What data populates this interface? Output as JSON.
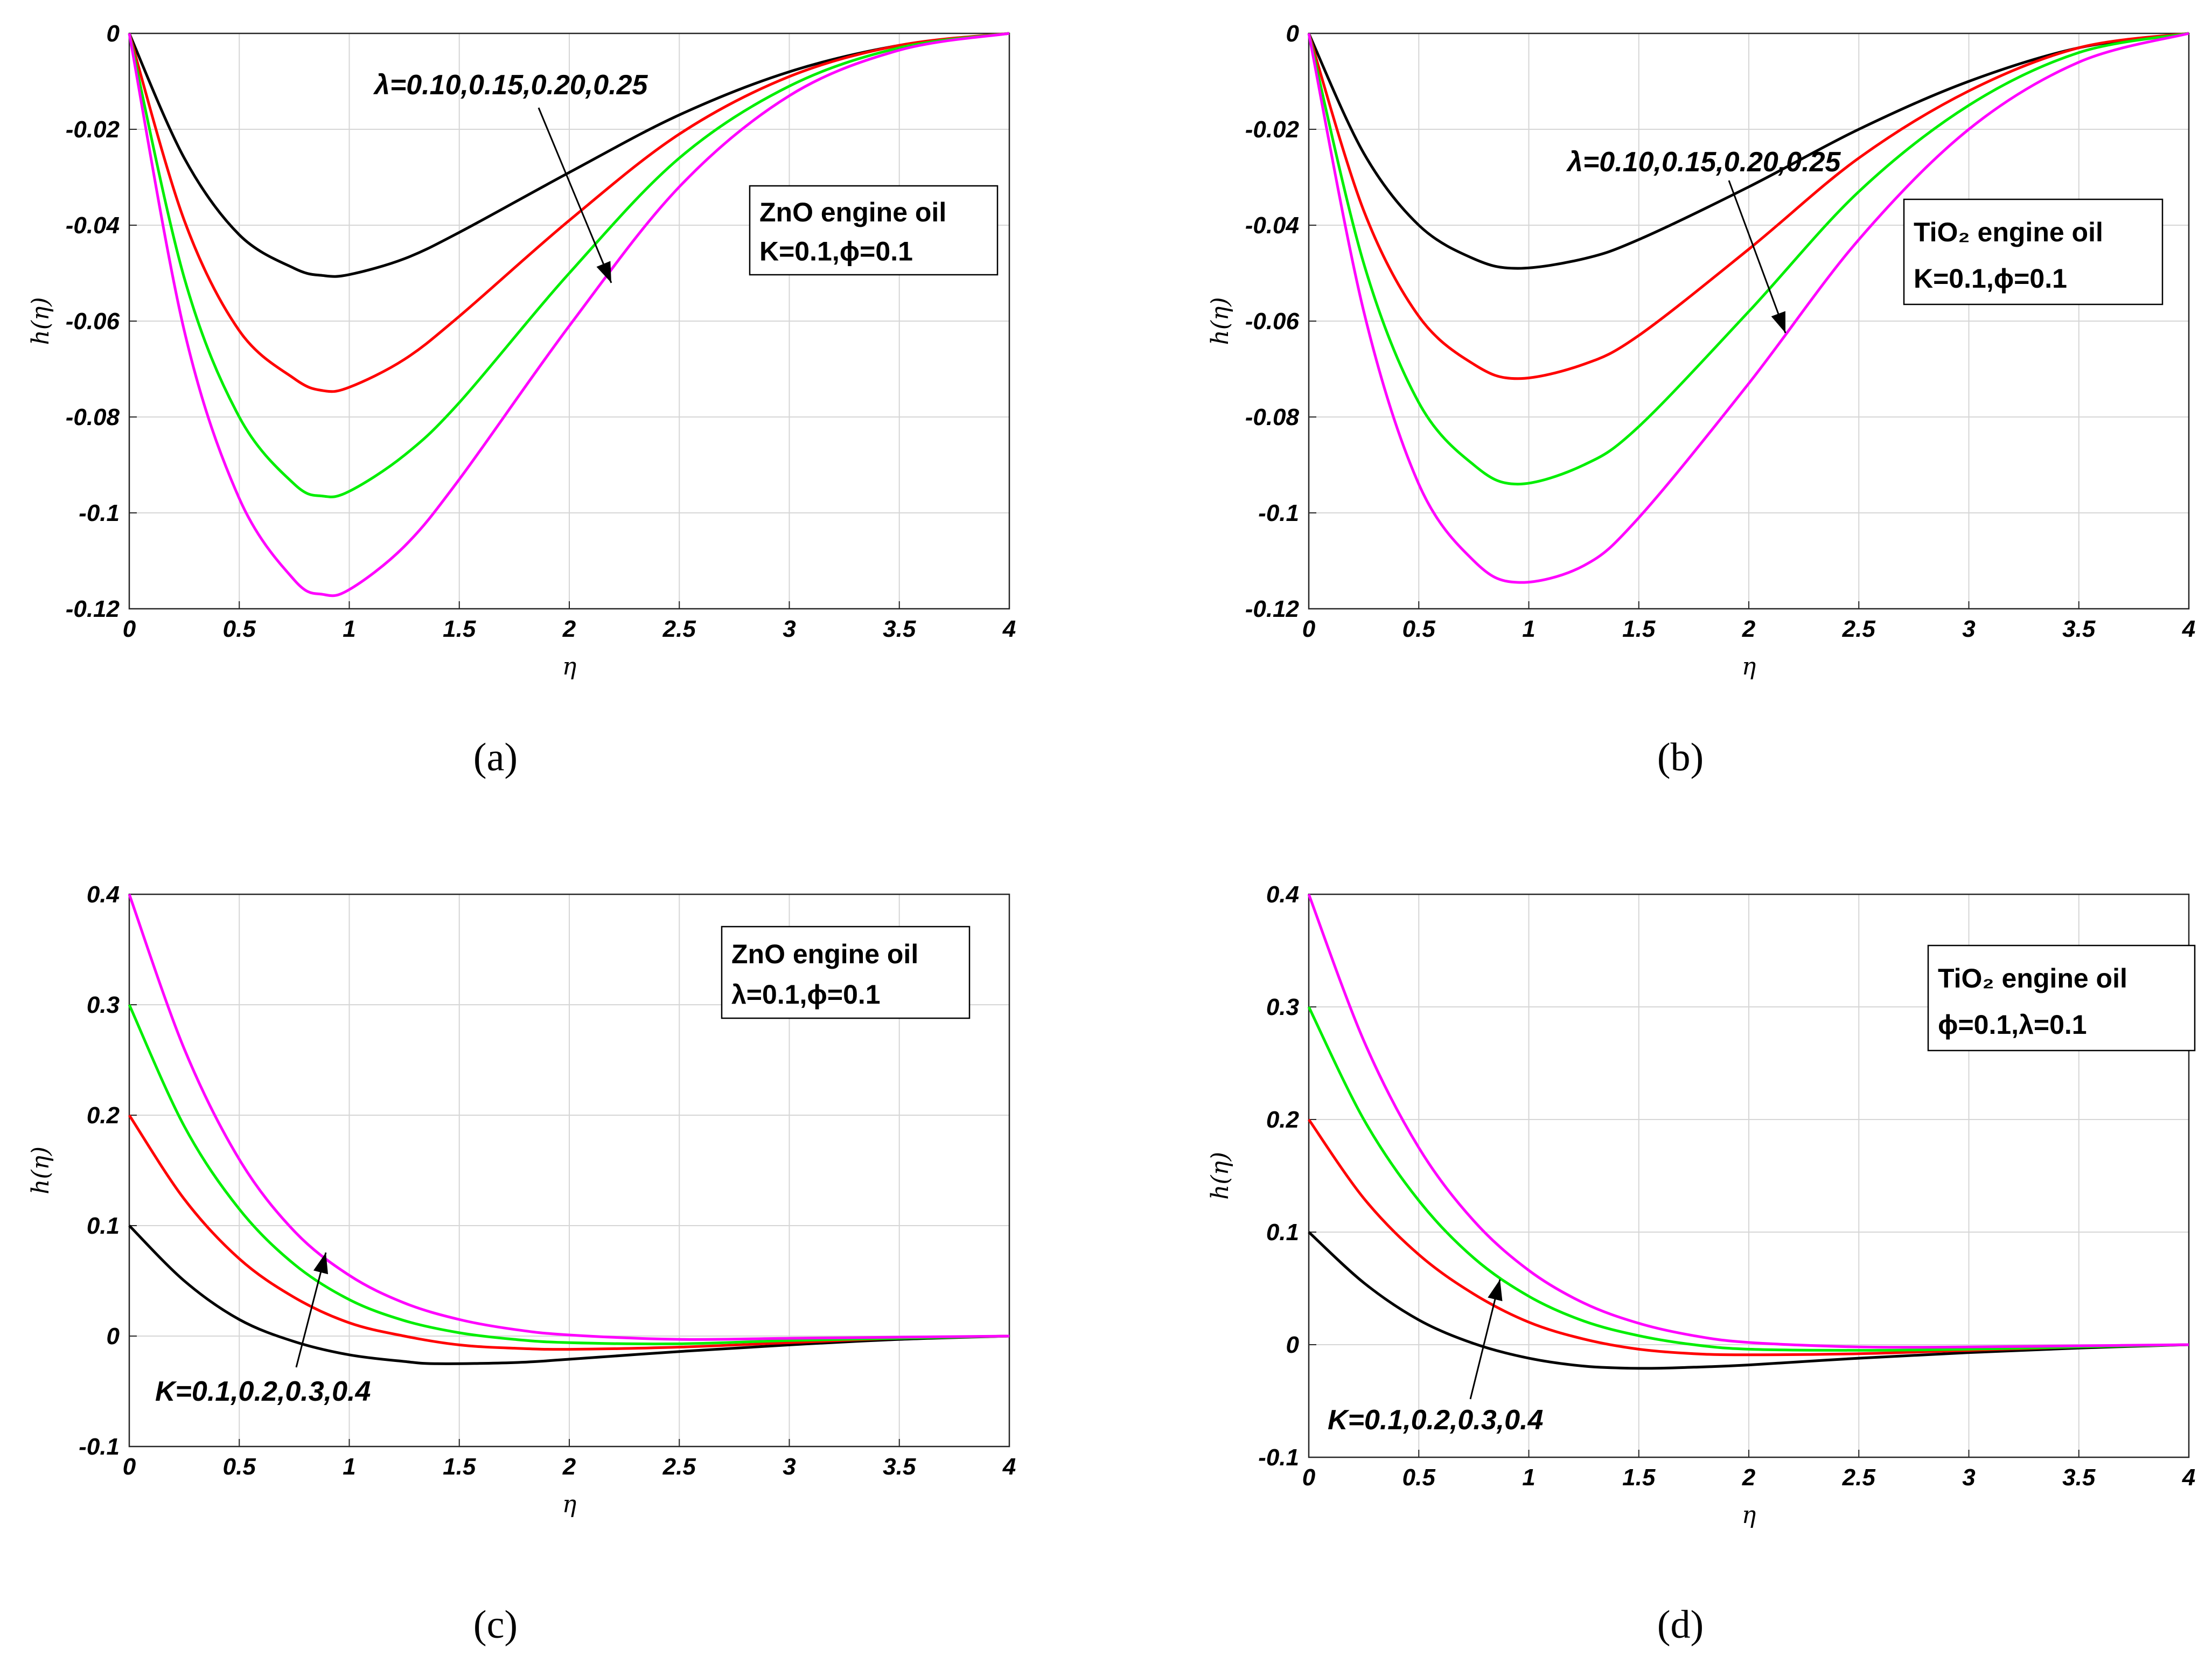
{
  "chart_data": [
    {
      "type": "line",
      "caption": "(a)",
      "xlabel": "η",
      "ylabel": "h(η)",
      "xlim": [
        0,
        4
      ],
      "ylim": [
        -0.12,
        0
      ],
      "xticks": [
        "0",
        "0.5",
        "1",
        "1.5",
        "2",
        "2.5",
        "3",
        "3.5",
        "4"
      ],
      "yticks": [
        "0",
        "-0.02",
        "-0.04",
        "-0.06",
        "-0.08",
        "-0.1",
        "-0.12"
      ],
      "grid": true,
      "legend": {
        "line1": "ZnO engine oil",
        "line2": "K=0.1,ϕ=0.1",
        "position": "right"
      },
      "annotation": "λ=0.10,0.15,0.20,0.25",
      "series": [
        {
          "color": "#000000",
          "x": [
            0,
            0.25,
            0.5,
            0.75,
            0.88,
            1.0,
            1.25,
            1.5,
            2.0,
            2.5,
            3.0,
            3.5,
            4.0
          ],
          "y": [
            0,
            -0.026,
            -0.042,
            -0.049,
            -0.0505,
            -0.0503,
            -0.047,
            -0.0415,
            -0.029,
            -0.017,
            -0.008,
            -0.0025,
            0
          ]
        },
        {
          "color": "#ff0000",
          "x": [
            0,
            0.25,
            0.5,
            0.75,
            0.88,
            1.0,
            1.25,
            1.5,
            2.0,
            2.5,
            3.0,
            3.5,
            4.0
          ],
          "y": [
            0,
            -0.039,
            -0.062,
            -0.072,
            -0.0745,
            -0.0738,
            -0.068,
            -0.059,
            -0.039,
            -0.021,
            -0.009,
            -0.0025,
            0
          ]
        },
        {
          "color": "#00ee00",
          "x": [
            0,
            0.25,
            0.5,
            0.75,
            0.88,
            1.0,
            1.25,
            1.5,
            2.0,
            2.5,
            3.0,
            3.5,
            4.0
          ],
          "y": [
            0,
            -0.051,
            -0.08,
            -0.094,
            -0.0965,
            -0.0955,
            -0.088,
            -0.077,
            -0.05,
            -0.026,
            -0.011,
            -0.003,
            0
          ]
        },
        {
          "color": "#ff00ff",
          "x": [
            0,
            0.25,
            0.5,
            0.75,
            0.88,
            1.0,
            1.25,
            1.5,
            2.0,
            2.5,
            3.0,
            3.5,
            4.0
          ],
          "y": [
            0,
            -0.062,
            -0.097,
            -0.114,
            -0.117,
            -0.116,
            -0.107,
            -0.093,
            -0.061,
            -0.032,
            -0.013,
            -0.0035,
            0
          ]
        }
      ]
    },
    {
      "type": "line",
      "caption": "(b)",
      "xlabel": "η",
      "ylabel": "h(η)",
      "xlim": [
        0,
        4
      ],
      "ylim": [
        -0.12,
        0
      ],
      "xticks": [
        "0",
        "0.5",
        "1",
        "1.5",
        "2",
        "2.5",
        "3",
        "3.5",
        "4"
      ],
      "yticks": [
        "0",
        "-0.02",
        "-0.04",
        "-0.06",
        "-0.08",
        "-0.1",
        "-0.12"
      ],
      "grid": true,
      "legend": {
        "line1": "TiO₂ engine oil",
        "line2": "K=0.1,ϕ=0.1",
        "position": "right"
      },
      "annotation": "λ=0.10,0.15,0.20,0.25",
      "series": [
        {
          "color": "#000000",
          "x": [
            0,
            0.25,
            0.5,
            0.75,
            0.95,
            1.25,
            1.5,
            2.0,
            2.5,
            3.0,
            3.5,
            4.0
          ],
          "y": [
            0,
            -0.025,
            -0.04,
            -0.047,
            -0.049,
            -0.047,
            -0.043,
            -0.032,
            -0.02,
            -0.01,
            -0.003,
            0
          ]
        },
        {
          "color": "#ff0000",
          "x": [
            0,
            0.25,
            0.5,
            0.75,
            0.95,
            1.25,
            1.5,
            2.0,
            2.5,
            3.0,
            3.5,
            4.0
          ],
          "y": [
            0,
            -0.037,
            -0.059,
            -0.069,
            -0.072,
            -0.069,
            -0.063,
            -0.045,
            -0.026,
            -0.012,
            -0.003,
            0
          ]
        },
        {
          "color": "#00ee00",
          "x": [
            0,
            0.25,
            0.5,
            0.75,
            0.95,
            1.25,
            1.5,
            2.0,
            2.5,
            3.0,
            3.5,
            4.0
          ],
          "y": [
            0,
            -0.048,
            -0.077,
            -0.09,
            -0.094,
            -0.09,
            -0.082,
            -0.058,
            -0.033,
            -0.015,
            -0.004,
            0
          ]
        },
        {
          "color": "#ff00ff",
          "x": [
            0,
            0.25,
            0.5,
            0.75,
            0.95,
            1.25,
            1.5,
            2.0,
            2.5,
            3.0,
            3.5,
            4.0
          ],
          "y": [
            0,
            -0.058,
            -0.094,
            -0.11,
            -0.1145,
            -0.111,
            -0.101,
            -0.073,
            -0.043,
            -0.02,
            -0.006,
            0
          ]
        }
      ]
    },
    {
      "type": "line",
      "caption": "(c)",
      "xlabel": "η",
      "ylabel": "h(η)",
      "xlim": [
        0,
        4
      ],
      "ylim": [
        -0.1,
        0.4
      ],
      "xticks": [
        "0",
        "0.5",
        "1",
        "1.5",
        "2",
        "2.5",
        "3",
        "3.5",
        "4"
      ],
      "yticks": [
        "0.4",
        "0.3",
        "0.2",
        "0.1",
        "0",
        "-0.1"
      ],
      "grid": true,
      "legend": {
        "line1": "ZnO engine oil",
        "line2": "λ=0.1,ϕ=0.1",
        "position": "right"
      },
      "annotation": "K=0.1,0.2,0.3,0.4",
      "series": [
        {
          "color": "#000000",
          "x": [
            0,
            0.25,
            0.5,
            0.75,
            1.0,
            1.25,
            1.4,
            1.75,
            2.0,
            2.5,
            3.0,
            3.5,
            4.0
          ],
          "y": [
            0.1,
            0.05,
            0.015,
            -0.005,
            -0.017,
            -0.023,
            -0.025,
            -0.024,
            -0.021,
            -0.014,
            -0.008,
            -0.003,
            0
          ]
        },
        {
          "color": "#ff0000",
          "x": [
            0,
            0.25,
            0.5,
            0.75,
            1.0,
            1.25,
            1.5,
            1.75,
            2.0,
            2.5,
            3.0,
            3.5,
            4.0
          ],
          "y": [
            0.2,
            0.124,
            0.07,
            0.035,
            0.012,
            0.0,
            -0.008,
            -0.011,
            -0.012,
            -0.01,
            -0.006,
            -0.002,
            0
          ]
        },
        {
          "color": "#00ee00",
          "x": [
            0,
            0.25,
            0.5,
            0.75,
            1.0,
            1.25,
            1.5,
            1.75,
            2.0,
            2.5,
            3.0,
            3.5,
            4.0
          ],
          "y": [
            0.3,
            0.19,
            0.115,
            0.065,
            0.033,
            0.014,
            0.003,
            -0.003,
            -0.006,
            -0.007,
            -0.004,
            -0.002,
            0
          ]
        },
        {
          "color": "#ff00ff",
          "x": [
            0,
            0.25,
            0.5,
            0.75,
            1.0,
            1.25,
            1.5,
            1.75,
            2.0,
            2.5,
            3.0,
            3.5,
            4.0
          ],
          "y": [
            0.4,
            0.26,
            0.16,
            0.095,
            0.055,
            0.03,
            0.015,
            0.006,
            0.001,
            -0.003,
            -0.002,
            -0.001,
            0
          ]
        }
      ]
    },
    {
      "type": "line",
      "caption": "(d)",
      "xlabel": "η",
      "ylabel": "h(η)",
      "xlim": [
        0,
        4
      ],
      "ylim": [
        -0.1,
        0.4
      ],
      "xticks": [
        "0",
        "0.5",
        "1",
        "1.5",
        "2",
        "2.5",
        "3",
        "3.5",
        "4"
      ],
      "yticks": [
        "0.4",
        "0.3",
        "0.2",
        "0.1",
        "0",
        "-0.1"
      ],
      "grid": true,
      "legend": {
        "line1": "TiO₂ engine oil",
        "line2": "ϕ=0.1,λ=0.1",
        "position": "right"
      },
      "annotation": "K=0.1,0.2,0.3,0.4",
      "series": [
        {
          "color": "#000000",
          "x": [
            0,
            0.25,
            0.5,
            0.75,
            1.0,
            1.25,
            1.5,
            1.75,
            2.0,
            2.5,
            3.0,
            3.5,
            4.0
          ],
          "y": [
            0.1,
            0.055,
            0.022,
            0.001,
            -0.012,
            -0.019,
            -0.021,
            -0.02,
            -0.018,
            -0.012,
            -0.007,
            -0.003,
            0
          ]
        },
        {
          "color": "#ff0000",
          "x": [
            0,
            0.25,
            0.5,
            0.75,
            1.0,
            1.25,
            1.5,
            1.75,
            2.0,
            2.5,
            3.0,
            3.5,
            4.0
          ],
          "y": [
            0.2,
            0.13,
            0.08,
            0.045,
            0.02,
            0.005,
            -0.004,
            -0.008,
            -0.009,
            -0.008,
            -0.005,
            -0.002,
            0
          ]
        },
        {
          "color": "#00ee00",
          "x": [
            0,
            0.25,
            0.5,
            0.75,
            1.0,
            1.25,
            1.5,
            1.75,
            2.0,
            2.5,
            3.0,
            3.5,
            4.0
          ],
          "y": [
            0.3,
            0.2,
            0.128,
            0.077,
            0.043,
            0.021,
            0.008,
            0.0,
            -0.004,
            -0.005,
            -0.004,
            -0.002,
            0
          ]
        },
        {
          "color": "#ff00ff",
          "x": [
            0,
            0.25,
            0.5,
            0.75,
            1.0,
            1.25,
            1.5,
            1.75,
            2.0,
            2.5,
            3.0,
            3.5,
            4.0
          ],
          "y": [
            0.4,
            0.27,
            0.175,
            0.11,
            0.066,
            0.037,
            0.019,
            0.008,
            0.002,
            -0.002,
            -0.002,
            -0.001,
            0
          ]
        }
      ]
    }
  ]
}
